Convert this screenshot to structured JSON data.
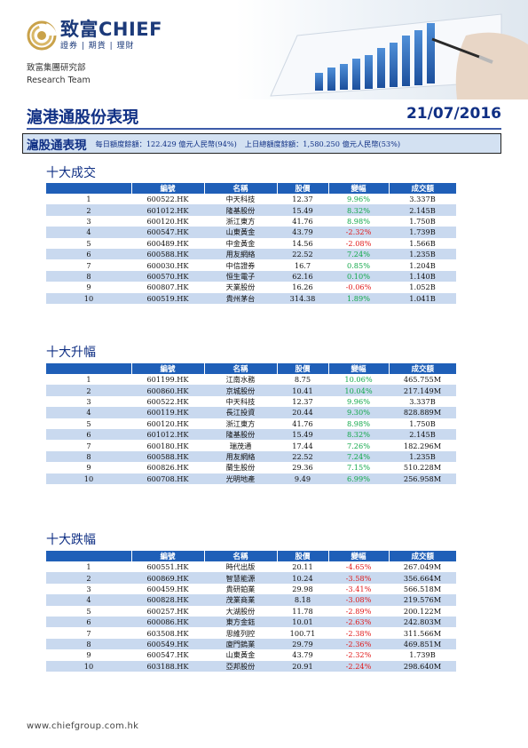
{
  "header": {
    "brand_name": "致富CHIEF",
    "brand_tagline": "證券 | 期貨 | 理財",
    "org_name": "致富集團研究部",
    "org_team": "Research Team"
  },
  "report": {
    "title": "滬港通股份表現",
    "date": "21/07/2016"
  },
  "quota": {
    "title": "滬股通表現",
    "daily_balance": "每日額度餘額：122.429 億元人民幣(94%)",
    "previous_total_balance": "上日總額度餘額：1,580.250 億元人民幣(53%)"
  },
  "columns": [
    "編號",
    "名稱",
    "股價",
    "變幅",
    "成交額"
  ],
  "sections": [
    {
      "title": "十大成交",
      "rows": [
        {
          "rank": "1",
          "code": "600522.HK",
          "name": "中天科技",
          "price": "12.37",
          "change": "9.96%",
          "turnover": "3.337B"
        },
        {
          "rank": "2",
          "code": "601012.HK",
          "name": "隆基股份",
          "price": "15.49",
          "change": "8.32%",
          "turnover": "2.145B"
        },
        {
          "rank": "3",
          "code": "600120.HK",
          "name": "浙江東方",
          "price": "41.76",
          "change": "8.98%",
          "turnover": "1.750B"
        },
        {
          "rank": "4",
          "code": "600547.HK",
          "name": "山東黃金",
          "price": "43.79",
          "change": "-2.32%",
          "turnover": "1.739B"
        },
        {
          "rank": "5",
          "code": "600489.HK",
          "name": "中金黃金",
          "price": "14.56",
          "change": "-2.08%",
          "turnover": "1.566B"
        },
        {
          "rank": "6",
          "code": "600588.HK",
          "name": "用友網絡",
          "price": "22.52",
          "change": "7.24%",
          "turnover": "1.235B"
        },
        {
          "rank": "7",
          "code": "600030.HK",
          "name": "中信證券",
          "price": "16.7",
          "change": "0.85%",
          "turnover": "1.204B"
        },
        {
          "rank": "8",
          "code": "600570.HK",
          "name": "恒生電子",
          "price": "62.16",
          "change": "0.10%",
          "turnover": "1.140B"
        },
        {
          "rank": "9",
          "code": "600807.HK",
          "name": "天業股份",
          "price": "16.26",
          "change": "-0.06%",
          "turnover": "1.052B"
        },
        {
          "rank": "10",
          "code": "600519.HK",
          "name": "貴州茅台",
          "price": "314.38",
          "change": "1.89%",
          "turnover": "1.041B"
        }
      ]
    },
    {
      "title": "十大升幅",
      "rows": [
        {
          "rank": "1",
          "code": "601199.HK",
          "name": "江南水務",
          "price": "8.75",
          "change": "10.06%",
          "turnover": "465.755M"
        },
        {
          "rank": "2",
          "code": "600860.HK",
          "name": "京城股份",
          "price": "10.41",
          "change": "10.04%",
          "turnover": "217.149M"
        },
        {
          "rank": "3",
          "code": "600522.HK",
          "name": "中天科技",
          "price": "12.37",
          "change": "9.96%",
          "turnover": "3.337B"
        },
        {
          "rank": "4",
          "code": "600119.HK",
          "name": "長江投資",
          "price": "20.44",
          "change": "9.30%",
          "turnover": "828.889M"
        },
        {
          "rank": "5",
          "code": "600120.HK",
          "name": "浙江東方",
          "price": "41.76",
          "change": "8.98%",
          "turnover": "1.750B"
        },
        {
          "rank": "6",
          "code": "601012.HK",
          "name": "隆基股份",
          "price": "15.49",
          "change": "8.32%",
          "turnover": "2.145B"
        },
        {
          "rank": "7",
          "code": "600180.HK",
          "name": "瑞茂通",
          "price": "17.44",
          "change": "7.26%",
          "turnover": "182.296M"
        },
        {
          "rank": "8",
          "code": "600588.HK",
          "name": "用友網絡",
          "price": "22.52",
          "change": "7.24%",
          "turnover": "1.235B"
        },
        {
          "rank": "9",
          "code": "600826.HK",
          "name": "蘭生股份",
          "price": "29.36",
          "change": "7.15%",
          "turnover": "510.228M"
        },
        {
          "rank": "10",
          "code": "600708.HK",
          "name": "光明地產",
          "price": "9.49",
          "change": "6.99%",
          "turnover": "256.958M"
        }
      ]
    },
    {
      "title": "十大跌幅",
      "rows": [
        {
          "rank": "1",
          "code": "600551.HK",
          "name": "時代出版",
          "price": "20.11",
          "change": "-4.65%",
          "turnover": "267.049M"
        },
        {
          "rank": "2",
          "code": "600869.HK",
          "name": "智慧能源",
          "price": "10.24",
          "change": "-3.58%",
          "turnover": "356.664M"
        },
        {
          "rank": "3",
          "code": "600459.HK",
          "name": "貴研鉑業",
          "price": "29.98",
          "change": "-3.41%",
          "turnover": "566.518M"
        },
        {
          "rank": "4",
          "code": "600828.HK",
          "name": "茂業商業",
          "price": "8.18",
          "change": "-3.08%",
          "turnover": "219.576M"
        },
        {
          "rank": "5",
          "code": "600257.HK",
          "name": "大湖股份",
          "price": "11.78",
          "change": "-2.89%",
          "turnover": "200.122M"
        },
        {
          "rank": "6",
          "code": "600086.HK",
          "name": "東方金鈺",
          "price": "10.01",
          "change": "-2.63%",
          "turnover": "242.803M"
        },
        {
          "rank": "7",
          "code": "603508.HK",
          "name": "思維列控",
          "price": "100.71",
          "change": "-2.38%",
          "turnover": "311.566M"
        },
        {
          "rank": "8",
          "code": "600549.HK",
          "name": "廈門鎢業",
          "price": "29.79",
          "change": "-2.36%",
          "turnover": "469.851M"
        },
        {
          "rank": "9",
          "code": "600547.HK",
          "name": "山東黃金",
          "price": "43.79",
          "change": "-2.32%",
          "turnover": "1.739B"
        },
        {
          "rank": "10",
          "code": "603188.HK",
          "name": "亞邦股份",
          "price": "20.91",
          "change": "-2.24%",
          "turnover": "298.640M"
        }
      ]
    }
  ],
  "footer": {
    "website": "www.chiefgroup.com.hk"
  },
  "colors": {
    "navy": "#0f2f84",
    "header_blue": "#1f5fb8",
    "band_blue": "#c9d9ef",
    "gain_green": "#12a84a",
    "loss_red": "#e11b1b",
    "logo_gold": "#c9a24a"
  }
}
